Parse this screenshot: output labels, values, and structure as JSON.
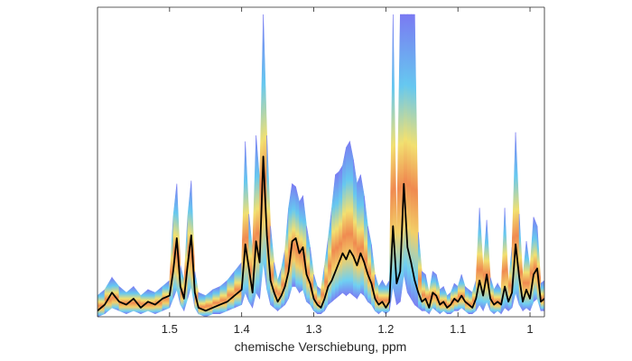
{
  "chart_data": {
    "type": "line",
    "title": "",
    "xlabel": "chemische Verschiebung, ppm",
    "ylabel": "",
    "x_reversed": true,
    "xlim": [
      1.6,
      0.98
    ],
    "ylim": [
      0,
      1
    ],
    "grid": false,
    "legend": "none",
    "x_ticks": [
      {
        "value": 1.5,
        "label": "1.5"
      },
      {
        "value": 1.4,
        "label": "1.4"
      },
      {
        "value": 1.3,
        "label": "1.3"
      },
      {
        "value": 1.2,
        "label": "1.2"
      },
      {
        "value": 1.1,
        "label": "1.1"
      },
      {
        "value": 1.0,
        "label": "1"
      }
    ],
    "x": [
      1.6,
      1.59,
      1.58,
      1.57,
      1.56,
      1.55,
      1.54,
      1.53,
      1.52,
      1.51,
      1.5,
      1.495,
      1.49,
      1.485,
      1.48,
      1.475,
      1.47,
      1.465,
      1.46,
      1.45,
      1.44,
      1.43,
      1.42,
      1.41,
      1.4,
      1.395,
      1.39,
      1.385,
      1.38,
      1.375,
      1.37,
      1.365,
      1.36,
      1.355,
      1.35,
      1.345,
      1.34,
      1.335,
      1.33,
      1.325,
      1.32,
      1.315,
      1.31,
      1.305,
      1.3,
      1.295,
      1.29,
      1.285,
      1.28,
      1.275,
      1.27,
      1.265,
      1.26,
      1.255,
      1.25,
      1.245,
      1.24,
      1.235,
      1.23,
      1.225,
      1.22,
      1.215,
      1.21,
      1.205,
      1.2,
      1.195,
      1.19,
      1.185,
      1.18,
      1.175,
      1.17,
      1.165,
      1.16,
      1.155,
      1.15,
      1.145,
      1.14,
      1.135,
      1.13,
      1.125,
      1.12,
      1.115,
      1.11,
      1.105,
      1.1,
      1.095,
      1.09,
      1.085,
      1.08,
      1.075,
      1.07,
      1.065,
      1.06,
      1.055,
      1.05,
      1.045,
      1.04,
      1.035,
      1.03,
      1.025,
      1.02,
      1.015,
      1.01,
      1.005,
      1.0,
      0.995,
      0.99,
      0.985,
      0.98
    ],
    "series": [
      {
        "role": "spectrum",
        "color": "#000000",
        "values": [
          0.02,
          0.04,
          0.08,
          0.05,
          0.04,
          0.06,
          0.03,
          0.05,
          0.04,
          0.06,
          0.07,
          0.15,
          0.26,
          0.1,
          0.06,
          0.17,
          0.27,
          0.08,
          0.03,
          0.02,
          0.03,
          0.04,
          0.05,
          0.07,
          0.09,
          0.24,
          0.16,
          0.08,
          0.25,
          0.18,
          0.53,
          0.27,
          0.12,
          0.08,
          0.05,
          0.07,
          0.1,
          0.15,
          0.25,
          0.26,
          0.21,
          0.23,
          0.14,
          0.11,
          0.06,
          0.04,
          0.03,
          0.06,
          0.1,
          0.12,
          0.15,
          0.18,
          0.21,
          0.19,
          0.22,
          0.2,
          0.17,
          0.21,
          0.18,
          0.14,
          0.11,
          0.06,
          0.04,
          0.05,
          0.03,
          0.05,
          0.3,
          0.11,
          0.15,
          0.44,
          0.23,
          0.18,
          0.12,
          0.08,
          0.05,
          0.06,
          0.03,
          0.08,
          0.07,
          0.04,
          0.05,
          0.03,
          0.04,
          0.06,
          0.05,
          0.07,
          0.05,
          0.04,
          0.03,
          0.06,
          0.12,
          0.07,
          0.14,
          0.06,
          0.04,
          0.05,
          0.04,
          0.1,
          0.05,
          0.08,
          0.24,
          0.13,
          0.05,
          0.09,
          0.06,
          0.14,
          0.16,
          0.05,
          0.06
        ]
      },
      {
        "role": "envelope-upper",
        "color": "#7777ee",
        "values": [
          0.07,
          0.09,
          0.13,
          0.1,
          0.08,
          0.1,
          0.07,
          0.09,
          0.08,
          0.1,
          0.12,
          0.33,
          0.44,
          0.17,
          0.12,
          0.33,
          0.45,
          0.15,
          0.08,
          0.07,
          0.09,
          0.1,
          0.12,
          0.15,
          0.18,
          0.58,
          0.34,
          0.22,
          0.6,
          0.45,
          1.0,
          0.6,
          0.3,
          0.18,
          0.12,
          0.16,
          0.22,
          0.36,
          0.44,
          0.43,
          0.38,
          0.4,
          0.3,
          0.23,
          0.14,
          0.1,
          0.09,
          0.17,
          0.26,
          0.36,
          0.47,
          0.48,
          0.5,
          0.56,
          0.58,
          0.52,
          0.44,
          0.47,
          0.4,
          0.3,
          0.24,
          0.14,
          0.1,
          0.12,
          0.1,
          0.12,
          1.0,
          0.26,
          1.0,
          1.0,
          1.0,
          1.0,
          1.0,
          0.28,
          0.15,
          0.14,
          0.08,
          0.15,
          0.14,
          0.09,
          0.1,
          0.07,
          0.08,
          0.11,
          0.1,
          0.14,
          0.1,
          0.09,
          0.08,
          0.12,
          0.36,
          0.16,
          0.32,
          0.13,
          0.09,
          0.11,
          0.09,
          0.36,
          0.11,
          0.23,
          0.61,
          0.34,
          0.13,
          0.25,
          0.16,
          0.33,
          0.3,
          0.11,
          0.12
        ]
      },
      {
        "role": "envelope-lower",
        "color": "#7777ee",
        "values": [
          0.0,
          0.01,
          0.03,
          0.02,
          0.01,
          0.02,
          0.01,
          0.02,
          0.01,
          0.02,
          0.03,
          0.06,
          0.09,
          0.04,
          0.02,
          0.06,
          0.1,
          0.03,
          0.01,
          0.0,
          0.01,
          0.01,
          0.02,
          0.03,
          0.04,
          0.08,
          0.05,
          0.03,
          0.08,
          0.06,
          0.18,
          0.09,
          0.04,
          0.03,
          0.02,
          0.03,
          0.04,
          0.06,
          0.1,
          0.1,
          0.08,
          0.09,
          0.05,
          0.04,
          0.02,
          0.01,
          0.01,
          0.02,
          0.04,
          0.05,
          0.06,
          0.07,
          0.08,
          0.07,
          0.08,
          0.07,
          0.06,
          0.08,
          0.07,
          0.05,
          0.04,
          0.02,
          0.01,
          0.02,
          0.01,
          0.02,
          0.1,
          0.04,
          0.05,
          0.14,
          0.08,
          0.06,
          0.04,
          0.03,
          0.02,
          0.02,
          0.01,
          0.03,
          0.02,
          0.01,
          0.02,
          0.01,
          0.01,
          0.02,
          0.02,
          0.03,
          0.02,
          0.01,
          0.01,
          0.02,
          0.04,
          0.02,
          0.05,
          0.02,
          0.01,
          0.02,
          0.01,
          0.03,
          0.02,
          0.03,
          0.08,
          0.04,
          0.02,
          0.03,
          0.02,
          0.05,
          0.06,
          0.02,
          0.02
        ]
      }
    ]
  }
}
